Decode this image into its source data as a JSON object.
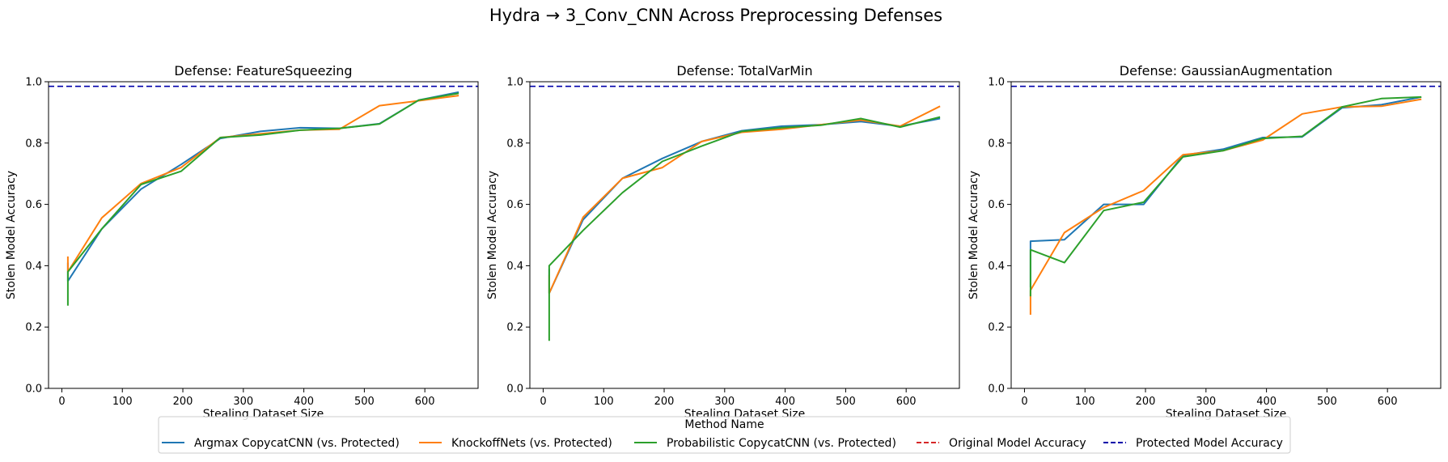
{
  "figure_title": "Hydra → 3_Conv_CNN Across Preprocessing Defenses",
  "legend": {
    "title": "Method Name",
    "entries": [
      {
        "label": "Argmax CopycatCNN (vs. Protected)",
        "color": "#1f77b4",
        "style": "solid"
      },
      {
        "label": "KnockoffNets (vs. Protected)",
        "color": "#ff7f0e",
        "style": "solid"
      },
      {
        "label": "Probabilistic CopycatCNN (vs. Protected)",
        "color": "#2ca02c",
        "style": "solid"
      },
      {
        "label": "Original Model Accuracy",
        "color": "#d62728",
        "style": "dashed"
      },
      {
        "label": "Protected Model Accuracy",
        "color": "#0000aa",
        "style": "dashed"
      }
    ]
  },
  "chart_data": [
    {
      "type": "line",
      "title": "Defense: FeatureSqueezing",
      "xlabel": "Stealing Dataset Size",
      "ylabel": "Stolen Model Accuracy",
      "xlim": [
        -22,
        688
      ],
      "ylim": [
        0,
        1
      ],
      "xticks": [
        0,
        100,
        200,
        300,
        400,
        500,
        600
      ],
      "yticks": [
        0.0,
        0.2,
        0.4,
        0.6,
        0.8,
        1.0
      ],
      "protected_accuracy": 0.985,
      "series": [
        {
          "name": "Argmax CopycatCNN (vs. Protected)",
          "color": "#1f77b4",
          "x": [
            10,
            10,
            66,
            131,
            197,
            262,
            328,
            394,
            459,
            525,
            590,
            656
          ],
          "y": [
            0.41,
            0.35,
            0.52,
            0.65,
            0.73,
            0.815,
            0.838,
            0.85,
            0.848,
            0.863,
            0.94,
            0.966
          ]
        },
        {
          "name": "KnockoffNets (vs. Protected)",
          "color": "#ff7f0e",
          "x": [
            10,
            10,
            66,
            131,
            197,
            262,
            328,
            394,
            459,
            525,
            590,
            656
          ],
          "y": [
            0.43,
            0.38,
            0.556,
            0.668,
            0.72,
            0.818,
            0.83,
            0.842,
            0.845,
            0.922,
            0.938,
            0.955
          ]
        },
        {
          "name": "Probabilistic CopycatCNN (vs. Protected)",
          "color": "#2ca02c",
          "x": [
            10,
            10,
            66,
            131,
            197,
            262,
            328,
            394,
            459,
            525,
            590,
            656
          ],
          "y": [
            0.27,
            0.38,
            0.52,
            0.665,
            0.708,
            0.818,
            0.826,
            0.842,
            0.848,
            0.862,
            0.94,
            0.962
          ]
        }
      ]
    },
    {
      "type": "line",
      "title": "Defense: TotalVarMin",
      "xlabel": "Stealing Dataset Size",
      "ylabel": "Stolen Model Accuracy",
      "xlim": [
        -22,
        688
      ],
      "ylim": [
        0,
        1
      ],
      "xticks": [
        0,
        100,
        200,
        300,
        400,
        500,
        600
      ],
      "yticks": [
        0.0,
        0.2,
        0.4,
        0.6,
        0.8,
        1.0
      ],
      "protected_accuracy": 0.985,
      "series": [
        {
          "name": "Argmax CopycatCNN (vs. Protected)",
          "color": "#1f77b4",
          "x": [
            10,
            10,
            66,
            131,
            197,
            262,
            328,
            394,
            459,
            525,
            590,
            656
          ],
          "y": [
            0.39,
            0.31,
            0.55,
            0.685,
            0.75,
            0.805,
            0.84,
            0.855,
            0.86,
            0.87,
            0.855,
            0.88
          ]
        },
        {
          "name": "KnockoffNets (vs. Protected)",
          "color": "#ff7f0e",
          "x": [
            10,
            10,
            66,
            131,
            197,
            262,
            328,
            394,
            459,
            525,
            590,
            656
          ],
          "y": [
            0.37,
            0.31,
            0.558,
            0.685,
            0.72,
            0.805,
            0.835,
            0.845,
            0.86,
            0.875,
            0.855,
            0.92
          ]
        },
        {
          "name": "Probabilistic CopycatCNN (vs. Protected)",
          "color": "#2ca02c",
          "x": [
            10,
            10,
            66,
            131,
            197,
            262,
            328,
            394,
            459,
            525,
            590,
            656
          ],
          "y": [
            0.155,
            0.4,
            0.515,
            0.638,
            0.74,
            0.79,
            0.838,
            0.85,
            0.858,
            0.88,
            0.852,
            0.885
          ]
        }
      ]
    },
    {
      "type": "line",
      "title": "Defense: GaussianAugmentation",
      "xlabel": "Stealing Dataset Size",
      "ylabel": "Stolen Model Accuracy",
      "xlim": [
        -22,
        688
      ],
      "ylim": [
        0,
        1
      ],
      "xticks": [
        0,
        100,
        200,
        300,
        400,
        500,
        600
      ],
      "yticks": [
        0.0,
        0.2,
        0.4,
        0.6,
        0.8,
        1.0
      ],
      "protected_accuracy": 0.985,
      "series": [
        {
          "name": "Argmax CopycatCNN (vs. Protected)",
          "color": "#1f77b4",
          "x": [
            10,
            10,
            66,
            131,
            197,
            262,
            328,
            394,
            459,
            525,
            590,
            656
          ],
          "y": [
            0.33,
            0.48,
            0.485,
            0.6,
            0.6,
            0.76,
            0.78,
            0.818,
            0.82,
            0.915,
            0.925,
            0.95
          ]
        },
        {
          "name": "KnockoffNets (vs. Protected)",
          "color": "#ff7f0e",
          "x": [
            10,
            10,
            66,
            131,
            197,
            262,
            328,
            394,
            459,
            525,
            590,
            656
          ],
          "y": [
            0.24,
            0.32,
            0.508,
            0.59,
            0.645,
            0.762,
            0.775,
            0.81,
            0.895,
            0.918,
            0.92,
            0.943
          ]
        },
        {
          "name": "Probabilistic CopycatCNN (vs. Protected)",
          "color": "#2ca02c",
          "x": [
            10,
            10,
            66,
            131,
            197,
            262,
            328,
            394,
            459,
            525,
            590,
            656
          ],
          "y": [
            0.3,
            0.452,
            0.41,
            0.58,
            0.607,
            0.755,
            0.775,
            0.815,
            0.822,
            0.918,
            0.945,
            0.95
          ]
        }
      ]
    }
  ]
}
